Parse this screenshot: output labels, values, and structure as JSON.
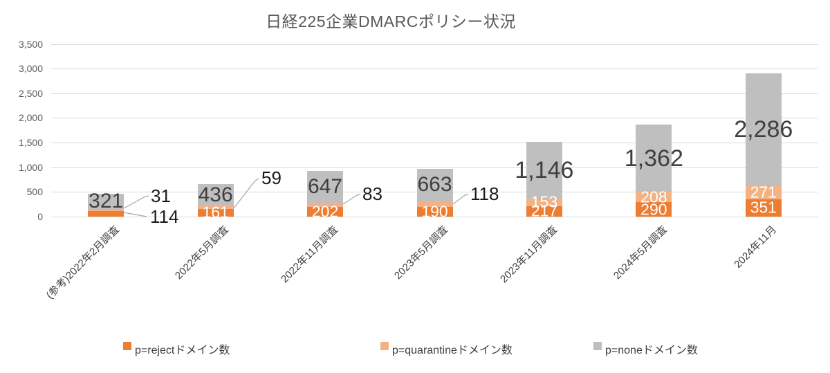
{
  "title": "日経225企業DMARCポリシー状況",
  "chart_data": {
    "type": "bar",
    "stacked": true,
    "title": "日経225企業DMARCポリシー状況",
    "categories": [
      "(参考)2022年2月調査",
      "2022年5月調査",
      "2022年11月調査",
      "2023年5月調査",
      "2023年11月調査",
      "2024年5月調査",
      "2024年11月"
    ],
    "series": [
      {
        "name": "p=rejectドメイン数",
        "color": "#ED7D31",
        "values": [
          114,
          161,
          202,
          190,
          217,
          290,
          351
        ]
      },
      {
        "name": "p=quarantineドメイン数",
        "color": "#F4B183",
        "values": [
          31,
          59,
          83,
          118,
          153,
          208,
          271
        ]
      },
      {
        "name": "p=noneドメイン数",
        "color": "#BFBFBF",
        "values": [
          321,
          436,
          647,
          663,
          1146,
          1362,
          2286
        ]
      }
    ],
    "ylim": [
      0,
      3500
    ],
    "ytick_labels": [
      "0",
      "500",
      "1,000",
      "1,500",
      "2,000",
      "2,500",
      "3,000",
      "3,500"
    ],
    "grid": true,
    "legend_position": "bottom",
    "data_labels": {
      "none_display": [
        "321",
        "436",
        "647",
        "663",
        "1,146",
        "1,362",
        "2,286"
      ],
      "reject_inside": [
        null,
        "161",
        "202",
        "190",
        "217",
        "290",
        "351"
      ],
      "quarantine_inside": [
        null,
        null,
        null,
        null,
        "153",
        "208",
        "271"
      ],
      "callouts": [
        {
          "category": 0,
          "series": "p=quarantineドメイン数",
          "text": "31"
        },
        {
          "category": 0,
          "series": "p=rejectドメイン数",
          "text": "114"
        },
        {
          "category": 1,
          "series": "p=quarantineドメイン数",
          "text": "59"
        },
        {
          "category": 2,
          "series": "p=quarantineドメイン数",
          "text": "83"
        },
        {
          "category": 3,
          "series": "p=quarantineドメイン数",
          "text": "118"
        }
      ]
    }
  },
  "legend": {
    "items": [
      {
        "label": "p=rejectドメイン数",
        "color": "#ED7D31"
      },
      {
        "label": "p=quarantineドメイン数",
        "color": "#F4B183"
      },
      {
        "label": "p=noneドメイン数",
        "color": "#BFBFBF"
      }
    ]
  },
  "colors": {
    "reject": "#ED7D31",
    "quarantine": "#F4B183",
    "none": "#BFBFBF",
    "gridline": "#D9D9D9",
    "leader_line": "#A6A6A6",
    "axis_text": "#595959",
    "label_dark": "#3F3F3F"
  }
}
